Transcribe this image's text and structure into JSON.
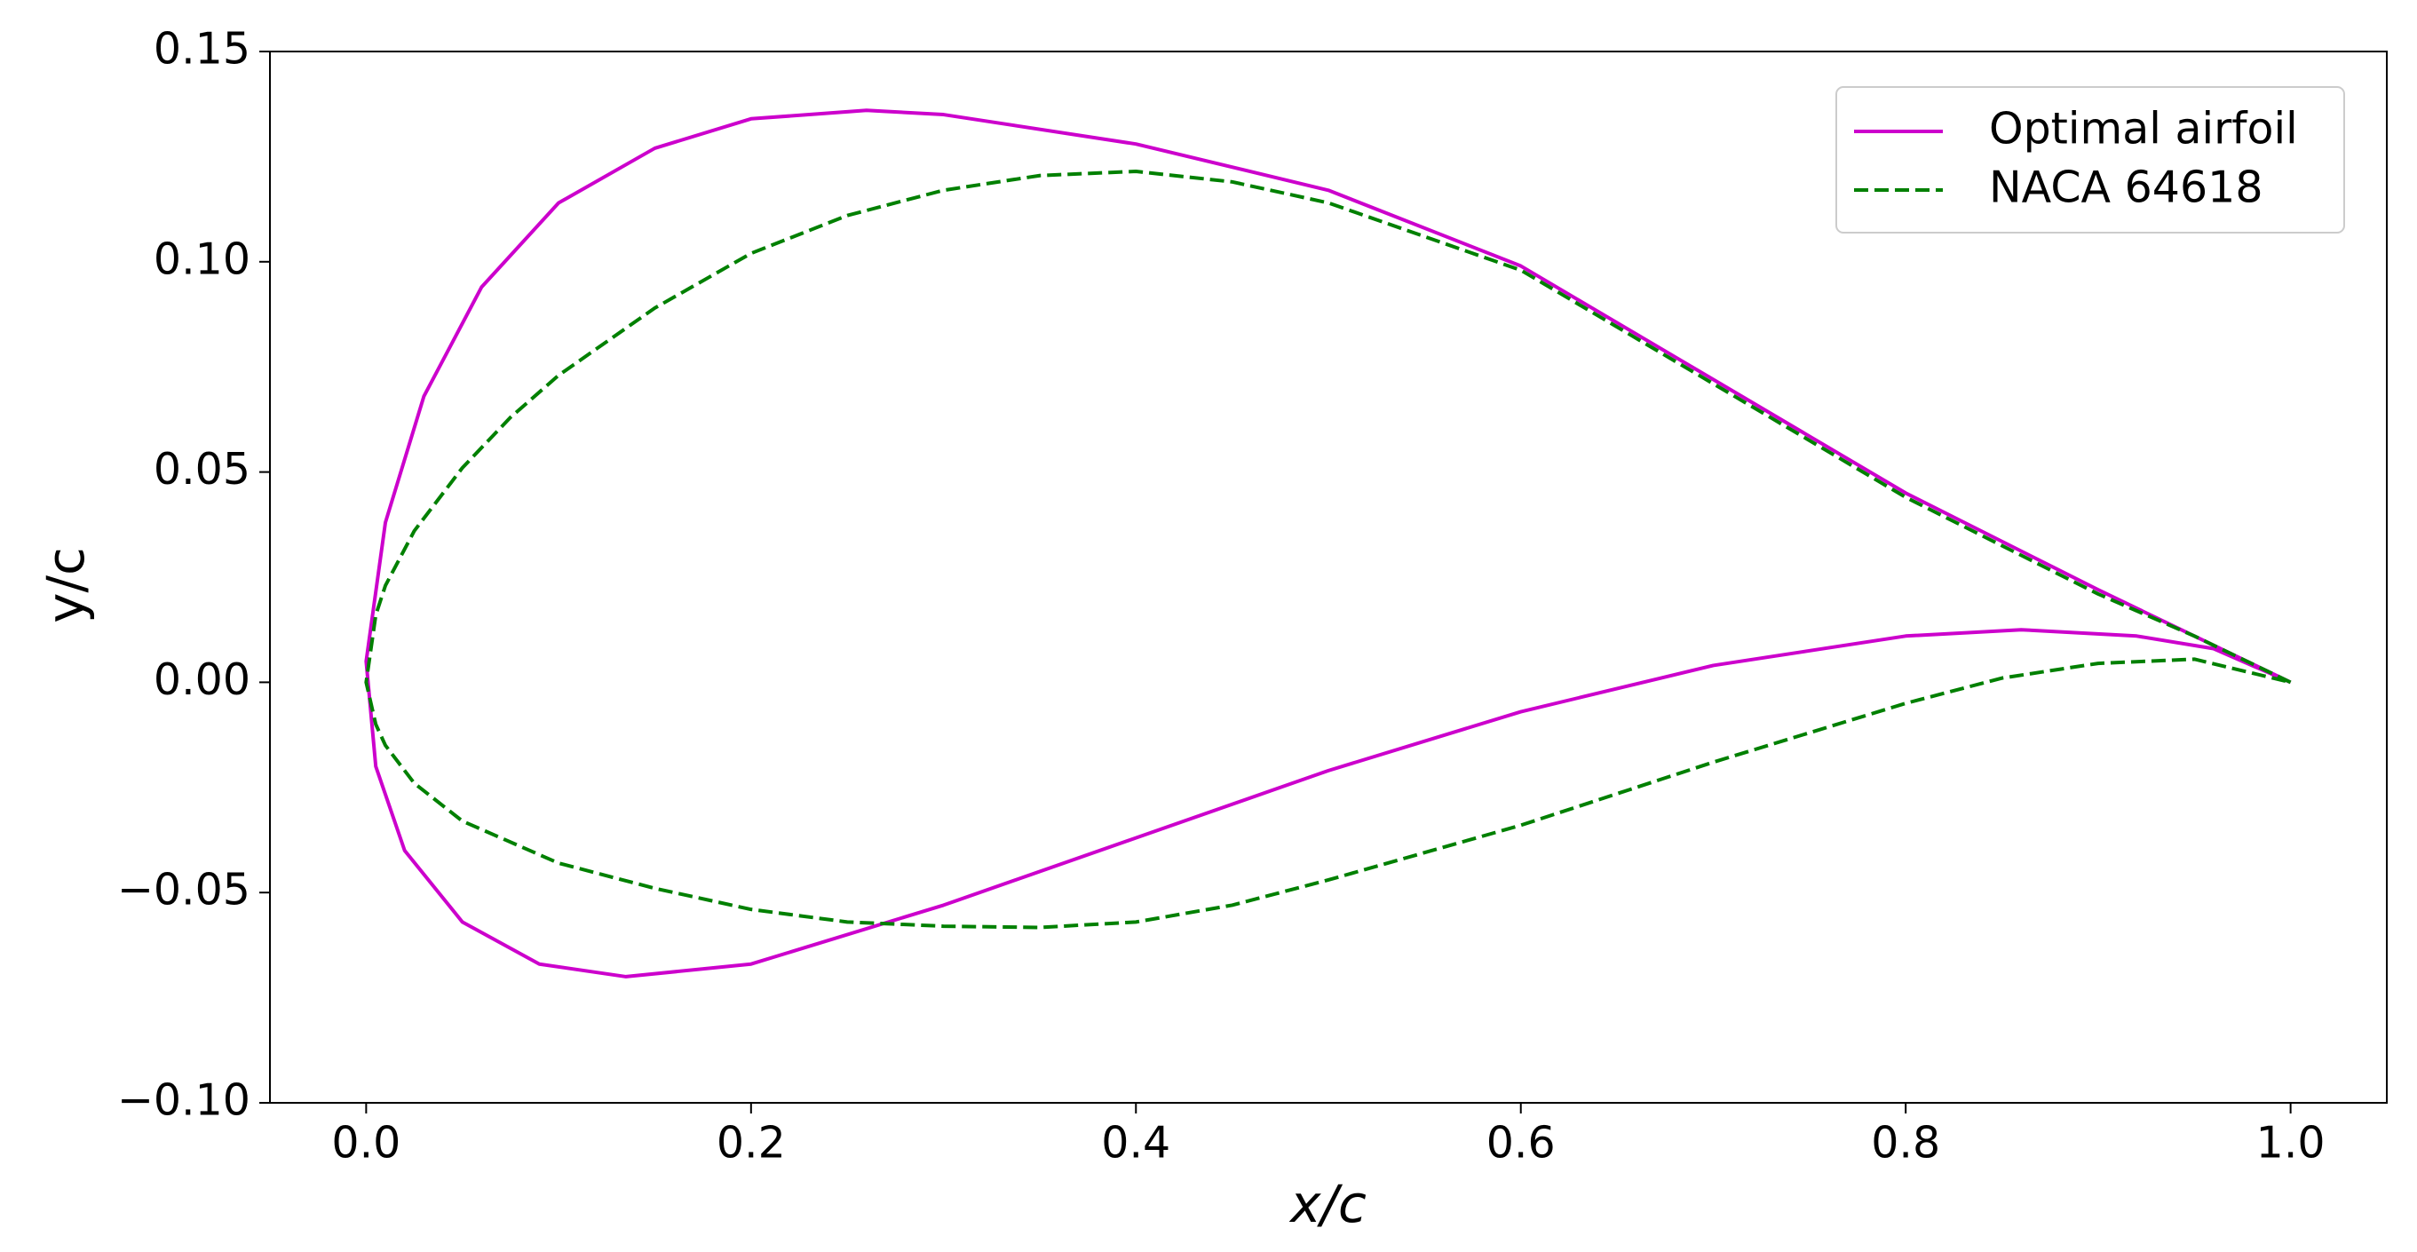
{
  "chart_data": {
    "type": "line",
    "xlabel": "x/c",
    "ylabel": "y/c",
    "xlim": [
      -0.05,
      1.05
    ],
    "ylim": [
      -0.1,
      0.15
    ],
    "xticks": [
      {
        "value": 0,
        "label": "0.0"
      },
      {
        "value": 0.2,
        "label": "0.2"
      },
      {
        "value": 0.4,
        "label": "0.4"
      },
      {
        "value": 0.6,
        "label": "0.6"
      },
      {
        "value": 0.8,
        "label": "0.8"
      },
      {
        "value": 1,
        "label": "1.0"
      }
    ],
    "yticks": [
      {
        "value": -0.1,
        "label": "−0.10"
      },
      {
        "value": -0.05,
        "label": "−0.05"
      },
      {
        "value": 0,
        "label": "0.00"
      },
      {
        "value": 0.05,
        "label": "0.05"
      },
      {
        "value": 0.1,
        "label": "0.10"
      },
      {
        "value": 0.15,
        "label": "0.15"
      }
    ],
    "grid": false,
    "legend": "upper right",
    "series": [
      {
        "name": "Optimal airfoil",
        "color": "#cc00cc",
        "linestyle": "solid",
        "x": [
          1.0,
          0.95,
          0.9,
          0.8,
          0.7,
          0.6,
          0.5,
          0.4,
          0.3,
          0.26,
          0.2,
          0.15,
          0.1,
          0.06,
          0.03,
          0.01,
          0.0,
          0.005,
          0.02,
          0.05,
          0.09,
          0.135,
          0.2,
          0.3,
          0.4,
          0.5,
          0.6,
          0.7,
          0.8,
          0.86,
          0.92,
          0.96,
          1.0
        ],
        "values": [
          0.0,
          0.011,
          0.022,
          0.045,
          0.072,
          0.099,
          0.117,
          0.128,
          0.135,
          0.136,
          0.134,
          0.127,
          0.114,
          0.094,
          0.068,
          0.038,
          0.005,
          -0.02,
          -0.04,
          -0.057,
          -0.067,
          -0.07,
          -0.067,
          -0.053,
          -0.037,
          -0.021,
          -0.007,
          0.004,
          0.011,
          0.0125,
          0.011,
          0.008,
          0.0
        ]
      },
      {
        "name": "NACA 64618",
        "color": "#008000",
        "linestyle": "dashed",
        "x": [
          1.0,
          0.95,
          0.9,
          0.8,
          0.7,
          0.6,
          0.5,
          0.45,
          0.4,
          0.35,
          0.3,
          0.25,
          0.2,
          0.15,
          0.1,
          0.075,
          0.05,
          0.025,
          0.01,
          0.005,
          0.0,
          0.005,
          0.01,
          0.025,
          0.05,
          0.1,
          0.15,
          0.2,
          0.25,
          0.3,
          0.35,
          0.4,
          0.45,
          0.5,
          0.6,
          0.7,
          0.8,
          0.85,
          0.9,
          0.95,
          1.0
        ],
        "values": [
          0.0,
          0.011,
          0.021,
          0.044,
          0.071,
          0.098,
          0.114,
          0.119,
          0.1215,
          0.1205,
          0.117,
          0.111,
          0.102,
          0.089,
          0.073,
          0.063,
          0.051,
          0.036,
          0.023,
          0.016,
          0.0,
          -0.01,
          -0.015,
          -0.024,
          -0.033,
          -0.043,
          -0.049,
          -0.054,
          -0.057,
          -0.058,
          -0.0583,
          -0.057,
          -0.053,
          -0.047,
          -0.034,
          -0.019,
          -0.005,
          0.001,
          0.0045,
          0.0055,
          0.0
        ]
      }
    ]
  }
}
